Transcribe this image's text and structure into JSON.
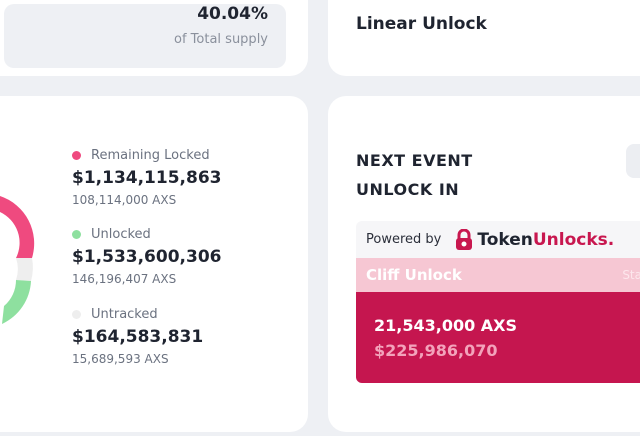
{
  "supply": {
    "percent": "40.04%",
    "label": "of Total supply"
  },
  "breakdown": {
    "items": [
      {
        "label": "Remaining Locked",
        "value": "$1,134,115,863",
        "tokens": "108,114,000 AXS",
        "color": "#ef4a7f"
      },
      {
        "label": "Unlocked",
        "value": "$1,533,600,306",
        "tokens": "146,196,407 AXS",
        "color": "#8ee09f"
      },
      {
        "label": "Untracked",
        "value": "$164,583,831",
        "tokens": "15,689,593 AXS",
        "color": "#eeeeee"
      }
    ]
  },
  "linear": {
    "title": "Linear Unlock"
  },
  "event": {
    "title_line1": "NEXT EVENT",
    "title_line2": "UNLOCK IN",
    "powered_by": "Powered by",
    "brand_main": "Token",
    "brand_accent": "Unlocks.",
    "brand_color": "#c8174f",
    "cliff_label": "Cliff Unlock",
    "cliff_right": "Sta",
    "amount": "21,543,000 AXS",
    "usd": "$225,986,070"
  }
}
